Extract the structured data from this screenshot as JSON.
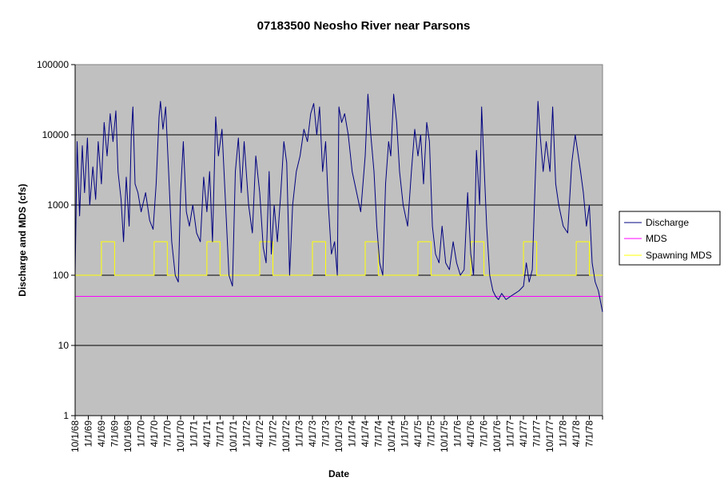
{
  "chart_data": {
    "type": "line",
    "title": "07183500 Neosho River near Parsons",
    "xlabel": "Date",
    "ylabel": "Discharge and MDS (cfs)",
    "y_scale": "log",
    "ylim": [
      1,
      100000
    ],
    "y_ticks": [
      "1",
      "10",
      "100",
      "1000",
      "10000",
      "100000"
    ],
    "xlim": [
      "1968-10-01",
      "1978-09-30"
    ],
    "x_tick_labels": [
      "10/1/68",
      "1/1/69",
      "4/1/69",
      "7/1/69",
      "10/1/69",
      "1/1/70",
      "4/1/70",
      "7/1/70",
      "10/1/70",
      "1/1/71",
      "4/1/71",
      "7/1/71",
      "10/1/71",
      "1/1/72",
      "4/1/72",
      "7/1/72",
      "10/1/72",
      "1/1/73",
      "4/1/73",
      "7/1/73",
      "10/1/73",
      "1/1/74",
      "4/1/74",
      "7/1/74",
      "10/1/74",
      "1/1/75",
      "4/1/75",
      "7/1/75",
      "10/1/75",
      "1/1/76",
      "4/1/76",
      "7/1/76",
      "10/1/76",
      "1/1/77",
      "4/1/77",
      "7/1/77",
      "10/1/77",
      "1/1/78",
      "4/1/78",
      "7/1/78"
    ],
    "plot_background": "#c0c0c0",
    "gridlines": "horizontal",
    "legend_position": "right",
    "series": [
      {
        "name": "Discharge",
        "color": "#000080",
        "points": [
          [
            "1968-10-01",
            100
          ],
          [
            "1968-10-15",
            8000
          ],
          [
            "1968-11-01",
            700
          ],
          [
            "1968-11-20",
            7000
          ],
          [
            "1968-12-05",
            1500
          ],
          [
            "1968-12-25",
            9000
          ],
          [
            "1969-01-10",
            1000
          ],
          [
            "1969-02-01",
            3500
          ],
          [
            "1969-02-20",
            1200
          ],
          [
            "1969-03-10",
            8000
          ],
          [
            "1969-04-01",
            2000
          ],
          [
            "1969-04-20",
            15000
          ],
          [
            "1969-05-10",
            5000
          ],
          [
            "1969-06-01",
            20000
          ],
          [
            "1969-06-20",
            8000
          ],
          [
            "1969-07-10",
            22000
          ],
          [
            "1969-07-25",
            3000
          ],
          [
            "1969-08-15",
            1200
          ],
          [
            "1969-09-01",
            300
          ],
          [
            "1969-09-20",
            2500
          ],
          [
            "1969-10-10",
            500
          ],
          [
            "1969-10-25",
            10000
          ],
          [
            "1969-11-05",
            25000
          ],
          [
            "1969-11-20",
            2000
          ],
          [
            "1969-12-10",
            1500
          ],
          [
            "1970-01-01",
            800
          ],
          [
            "1970-02-01",
            1500
          ],
          [
            "1970-03-01",
            600
          ],
          [
            "1970-03-25",
            450
          ],
          [
            "1970-04-15",
            2000
          ],
          [
            "1970-05-05",
            18000
          ],
          [
            "1970-05-15",
            30000
          ],
          [
            "1970-06-01",
            12000
          ],
          [
            "1970-06-20",
            25000
          ],
          [
            "1970-07-10",
            3000
          ],
          [
            "1970-08-01",
            300
          ],
          [
            "1970-08-25",
            100
          ],
          [
            "1970-09-15",
            80
          ],
          [
            "1970-10-01",
            1500
          ],
          [
            "1970-10-20",
            8000
          ],
          [
            "1970-11-10",
            800
          ],
          [
            "1970-12-01",
            500
          ],
          [
            "1970-12-25",
            1000
          ],
          [
            "1971-01-20",
            400
          ],
          [
            "1971-02-15",
            300
          ],
          [
            "1971-03-10",
            2500
          ],
          [
            "1971-04-01",
            800
          ],
          [
            "1971-04-20",
            3000
          ],
          [
            "1971-05-10",
            300
          ],
          [
            "1971-06-01",
            18000
          ],
          [
            "1971-06-20",
            5000
          ],
          [
            "1971-07-15",
            12000
          ],
          [
            "1971-08-05",
            1500
          ],
          [
            "1971-09-01",
            100
          ],
          [
            "1971-09-25",
            70
          ],
          [
            "1971-10-15",
            3000
          ],
          [
            "1971-11-05",
            9000
          ],
          [
            "1971-11-25",
            1500
          ],
          [
            "1971-12-15",
            8000
          ],
          [
            "1972-01-15",
            1000
          ],
          [
            "1972-02-10",
            400
          ],
          [
            "1972-03-05",
            5000
          ],
          [
            "1972-04-01",
            1500
          ],
          [
            "1972-04-25",
            250
          ],
          [
            "1972-05-15",
            150
          ],
          [
            "1972-06-05",
            3000
          ],
          [
            "1972-06-20",
            200
          ],
          [
            "1972-07-10",
            1000
          ],
          [
            "1972-08-01",
            300
          ],
          [
            "1972-08-25",
            1500
          ],
          [
            "1972-09-15",
            8000
          ],
          [
            "1972-10-05",
            4000
          ],
          [
            "1972-10-25",
            100
          ],
          [
            "1972-11-15",
            1000
          ],
          [
            "1972-12-10",
            3000
          ],
          [
            "1973-01-05",
            5000
          ],
          [
            "1973-02-01",
            12000
          ],
          [
            "1973-02-25",
            8000
          ],
          [
            "1973-03-20",
            20000
          ],
          [
            "1973-04-10",
            28000
          ],
          [
            "1973-05-01",
            10000
          ],
          [
            "1973-05-20",
            25000
          ],
          [
            "1973-06-10",
            3000
          ],
          [
            "1973-07-01",
            8000
          ],
          [
            "1973-07-20",
            1000
          ],
          [
            "1973-08-10",
            200
          ],
          [
            "1973-09-01",
            300
          ],
          [
            "1973-09-20",
            100
          ],
          [
            "1973-10-01",
            25000
          ],
          [
            "1973-10-20",
            15000
          ],
          [
            "1973-11-10",
            20000
          ],
          [
            "1973-12-05",
            10000
          ],
          [
            "1974-01-01",
            3000
          ],
          [
            "1974-02-01",
            1500
          ],
          [
            "1974-03-01",
            800
          ],
          [
            "1974-04-01",
            5000
          ],
          [
            "1974-04-20",
            38000
          ],
          [
            "1974-05-10",
            10000
          ],
          [
            "1974-06-01",
            3000
          ],
          [
            "1974-06-20",
            500
          ],
          [
            "1974-07-10",
            150
          ],
          [
            "1974-08-01",
            100
          ],
          [
            "1974-08-20",
            2000
          ],
          [
            "1974-09-10",
            8000
          ],
          [
            "1974-09-25",
            5000
          ],
          [
            "1974-10-15",
            38000
          ],
          [
            "1974-11-05",
            15000
          ],
          [
            "1974-11-25",
            3000
          ],
          [
            "1974-12-20",
            1000
          ],
          [
            "1975-01-20",
            500
          ],
          [
            "1975-02-15",
            3000
          ],
          [
            "1975-03-10",
            12000
          ],
          [
            "1975-04-01",
            5000
          ],
          [
            "1975-04-20",
            10000
          ],
          [
            "1975-05-10",
            2000
          ],
          [
            "1975-06-01",
            15000
          ],
          [
            "1975-06-20",
            8000
          ],
          [
            "1975-07-10",
            500
          ],
          [
            "1975-08-01",
            200
          ],
          [
            "1975-08-25",
            150
          ],
          [
            "1975-09-15",
            500
          ],
          [
            "1975-10-10",
            150
          ],
          [
            "1975-11-05",
            120
          ],
          [
            "1975-12-01",
            300
          ],
          [
            "1975-12-25",
            150
          ],
          [
            "1976-01-20",
            100
          ],
          [
            "1976-02-15",
            120
          ],
          [
            "1976-03-10",
            1500
          ],
          [
            "1976-04-01",
            200
          ],
          [
            "1976-04-20",
            100
          ],
          [
            "1976-05-10",
            6000
          ],
          [
            "1976-06-01",
            1000
          ],
          [
            "1976-06-15",
            25000
          ],
          [
            "1976-07-01",
            4000
          ],
          [
            "1976-07-20",
            500
          ],
          [
            "1976-08-10",
            100
          ],
          [
            "1976-09-01",
            60
          ],
          [
            "1976-09-20",
            50
          ],
          [
            "1976-10-10",
            45
          ],
          [
            "1976-11-01",
            55
          ],
          [
            "1976-12-01",
            45
          ],
          [
            "1977-01-01",
            50
          ],
          [
            "1977-02-01",
            55
          ],
          [
            "1977-03-01",
            60
          ],
          [
            "1977-04-01",
            70
          ],
          [
            "1977-04-20",
            150
          ],
          [
            "1977-05-10",
            80
          ],
          [
            "1977-06-01",
            120
          ],
          [
            "1977-06-20",
            2000
          ],
          [
            "1977-07-10",
            30000
          ],
          [
            "1977-07-25",
            10000
          ],
          [
            "1977-08-15",
            3000
          ],
          [
            "1977-09-05",
            8000
          ],
          [
            "1977-10-01",
            3000
          ],
          [
            "1977-10-20",
            25000
          ],
          [
            "1977-11-10",
            2000
          ],
          [
            "1977-12-01",
            1000
          ],
          [
            "1978-01-01",
            500
          ],
          [
            "1978-02-01",
            400
          ],
          [
            "1978-03-01",
            4000
          ],
          [
            "1978-03-25",
            10000
          ],
          [
            "1978-04-10",
            6000
          ],
          [
            "1978-05-01",
            3000
          ],
          [
            "1978-05-20",
            1500
          ],
          [
            "1978-06-10",
            500
          ],
          [
            "1978-07-01",
            1000
          ],
          [
            "1978-07-20",
            150
          ],
          [
            "1978-08-10",
            80
          ],
          [
            "1978-09-01",
            60
          ],
          [
            "1978-09-30",
            30
          ]
        ]
      },
      {
        "name": "MDS",
        "color": "#ff00ff",
        "points": [
          [
            "1968-10-01",
            50
          ],
          [
            "1978-09-30",
            50
          ]
        ]
      },
      {
        "name": "Spawning MDS",
        "color": "#ffff00",
        "points": [
          [
            "1968-10-01",
            100
          ],
          [
            "1969-04-01",
            100
          ],
          [
            "1969-04-01",
            300
          ],
          [
            "1969-07-01",
            300
          ],
          [
            "1969-07-01",
            100
          ],
          [
            "1970-04-01",
            100
          ],
          [
            "1970-04-01",
            300
          ],
          [
            "1970-07-01",
            300
          ],
          [
            "1970-07-01",
            100
          ],
          [
            "1971-04-01",
            100
          ],
          [
            "1971-04-01",
            300
          ],
          [
            "1971-07-01",
            300
          ],
          [
            "1971-07-01",
            100
          ],
          [
            "1972-04-01",
            100
          ],
          [
            "1972-04-01",
            300
          ],
          [
            "1972-07-01",
            300
          ],
          [
            "1972-07-01",
            100
          ],
          [
            "1973-04-01",
            100
          ],
          [
            "1973-04-01",
            300
          ],
          [
            "1973-07-01",
            300
          ],
          [
            "1973-07-01",
            100
          ],
          [
            "1974-04-01",
            100
          ],
          [
            "1974-04-01",
            300
          ],
          [
            "1974-07-01",
            300
          ],
          [
            "1974-07-01",
            100
          ],
          [
            "1975-04-01",
            100
          ],
          [
            "1975-04-01",
            300
          ],
          [
            "1975-07-01",
            300
          ],
          [
            "1975-07-01",
            100
          ],
          [
            "1976-04-01",
            100
          ],
          [
            "1976-04-01",
            300
          ],
          [
            "1976-07-01",
            300
          ],
          [
            "1976-07-01",
            100
          ],
          [
            "1977-04-01",
            100
          ],
          [
            "1977-04-01",
            300
          ],
          [
            "1977-07-01",
            300
          ],
          [
            "1977-07-01",
            100
          ],
          [
            "1978-04-01",
            100
          ],
          [
            "1978-04-01",
            300
          ],
          [
            "1978-07-01",
            300
          ],
          [
            "1978-07-01",
            100
          ],
          [
            "1978-09-30",
            100
          ]
        ]
      }
    ]
  }
}
